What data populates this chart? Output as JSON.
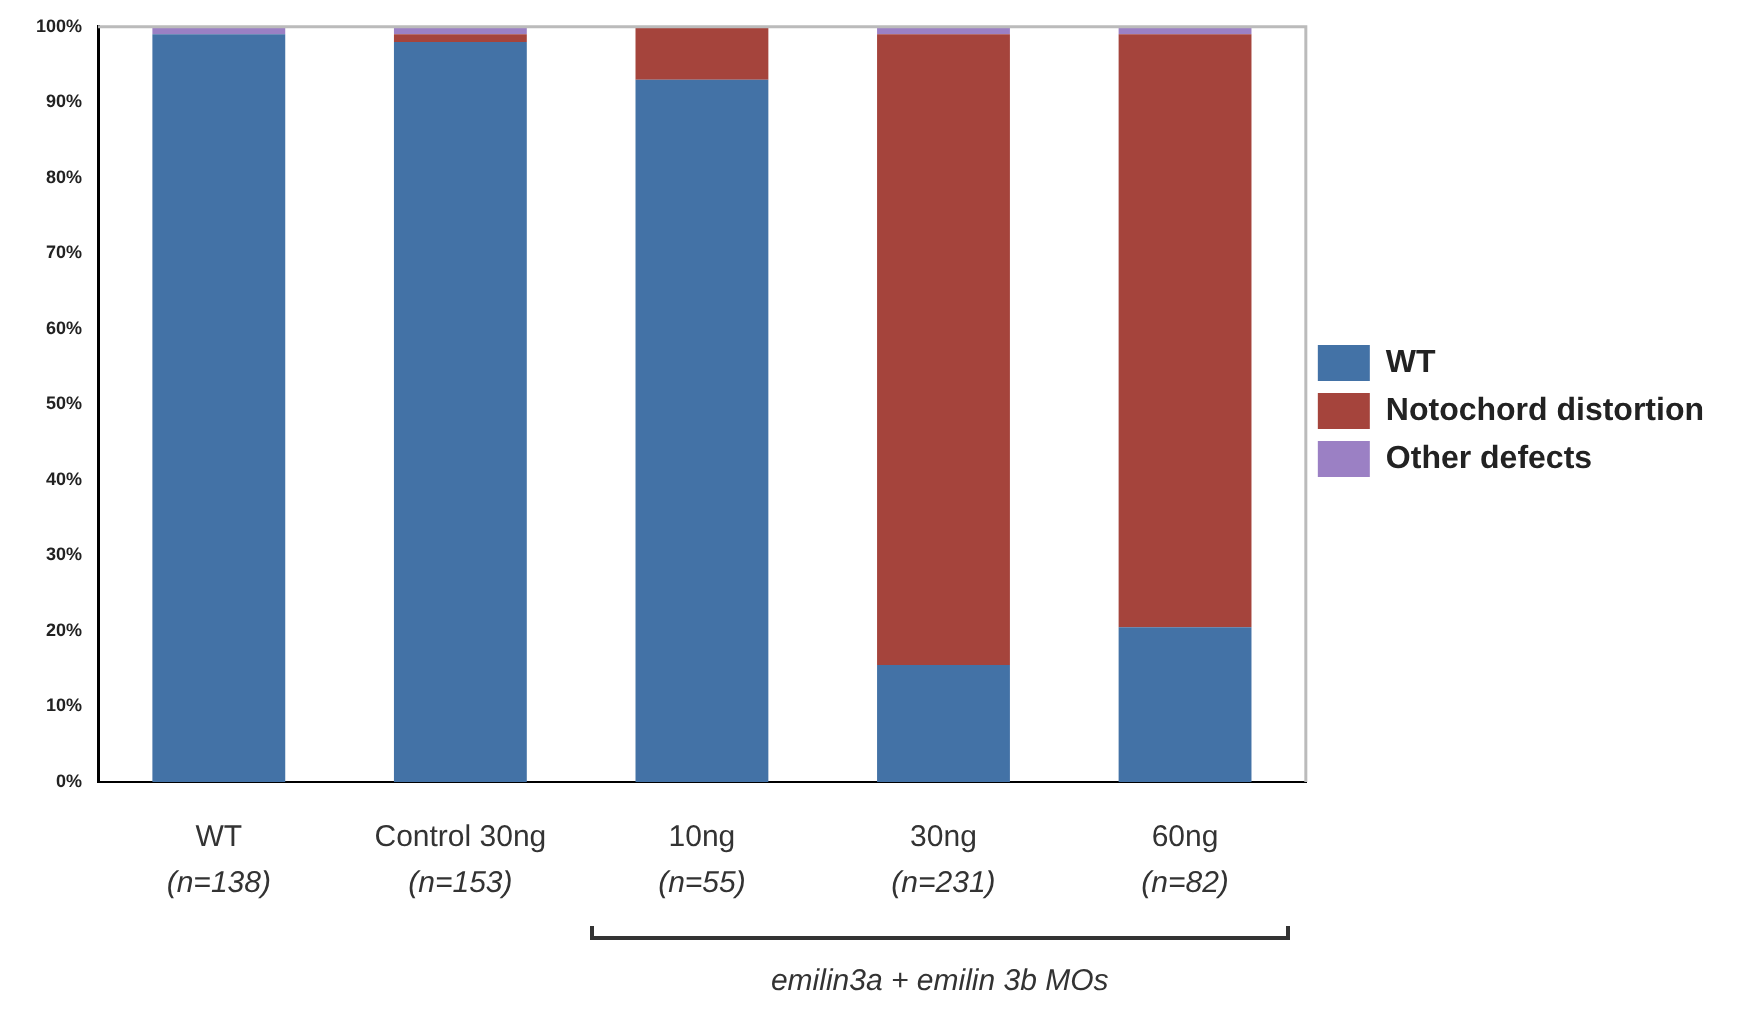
{
  "chart_data": {
    "type": "bar",
    "stacked": true,
    "categories": [
      "WT\n(n=138)",
      "Control 30ng\n(n=153)",
      "10ng\n(n=55)",
      "30ng\n(n=231)",
      "60ng\n(n=82)"
    ],
    "series": [
      {
        "name": "WT",
        "color": "#4372a6",
        "values": [
          99,
          98,
          93,
          15.5,
          20.5
        ]
      },
      {
        "name": "Notochord distortion",
        "color": "#a5443c",
        "values": [
          0,
          1,
          7,
          83.5,
          78.5
        ]
      },
      {
        "name": "Other defects",
        "color": "#9b80c4",
        "values": [
          1,
          1,
          0,
          1,
          1
        ]
      }
    ],
    "ylim": [
      0,
      100
    ],
    "yticks": [
      {
        "value": 0,
        "label": "0%"
      },
      {
        "value": 10,
        "label": "10%"
      },
      {
        "value": 20,
        "label": "20%"
      },
      {
        "value": 30,
        "label": "30%"
      },
      {
        "value": 40,
        "label": "40%"
      },
      {
        "value": 50,
        "label": "50%"
      },
      {
        "value": 60,
        "label": "60%"
      },
      {
        "value": 70,
        "label": "70%"
      },
      {
        "value": 80,
        "label": "80%"
      },
      {
        "value": 90,
        "label": "90%"
      },
      {
        "value": 100,
        "label": "100%"
      }
    ],
    "grid": false,
    "legend": "right",
    "annotations": [
      "emilin3a + emilin 3b MOs"
    ]
  }
}
